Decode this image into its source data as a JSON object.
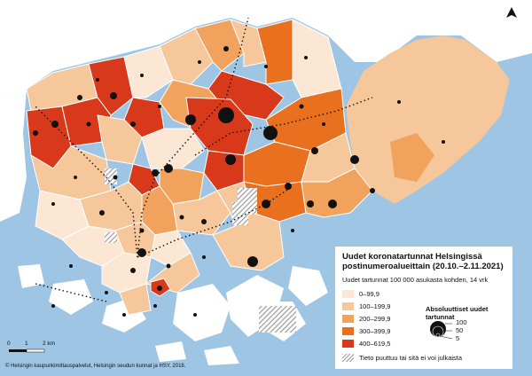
{
  "legend": {
    "title": "Uudet koronatartunnat Helsingissä postinumeroalueittain (20.10.–2.11.2021)",
    "subtitle": "Uudet tartunnat 100 000 asukasta kohden, 14 vrk",
    "classes": [
      {
        "label": "0–99,9",
        "color": "#fbe7d4"
      },
      {
        "label": "100–199,9",
        "color": "#f6c79b"
      },
      {
        "label": "200–299,9",
        "color": "#f1a35d"
      },
      {
        "label": "300–399,9",
        "color": "#e8701e"
      },
      {
        "label": "400–619,5",
        "color": "#d8391a"
      }
    ],
    "circles_title": "Absoluuttiset uudet tartunnat",
    "circle_values": [
      "100",
      "50",
      "5"
    ],
    "nodata_label": "Tieto puuttuu tai sitä ei voi julkaista"
  },
  "scale": {
    "start": "0",
    "mid": "1",
    "end": "2 km"
  },
  "credit": "© Helsingin kaupunkimittauspalvelut, Helsingin seudun kunnat ja HSY, 2018.",
  "colors": {
    "water": "#9ec5e3",
    "land_outside": "#ffffff",
    "no_data_hatch": "#999999"
  }
}
